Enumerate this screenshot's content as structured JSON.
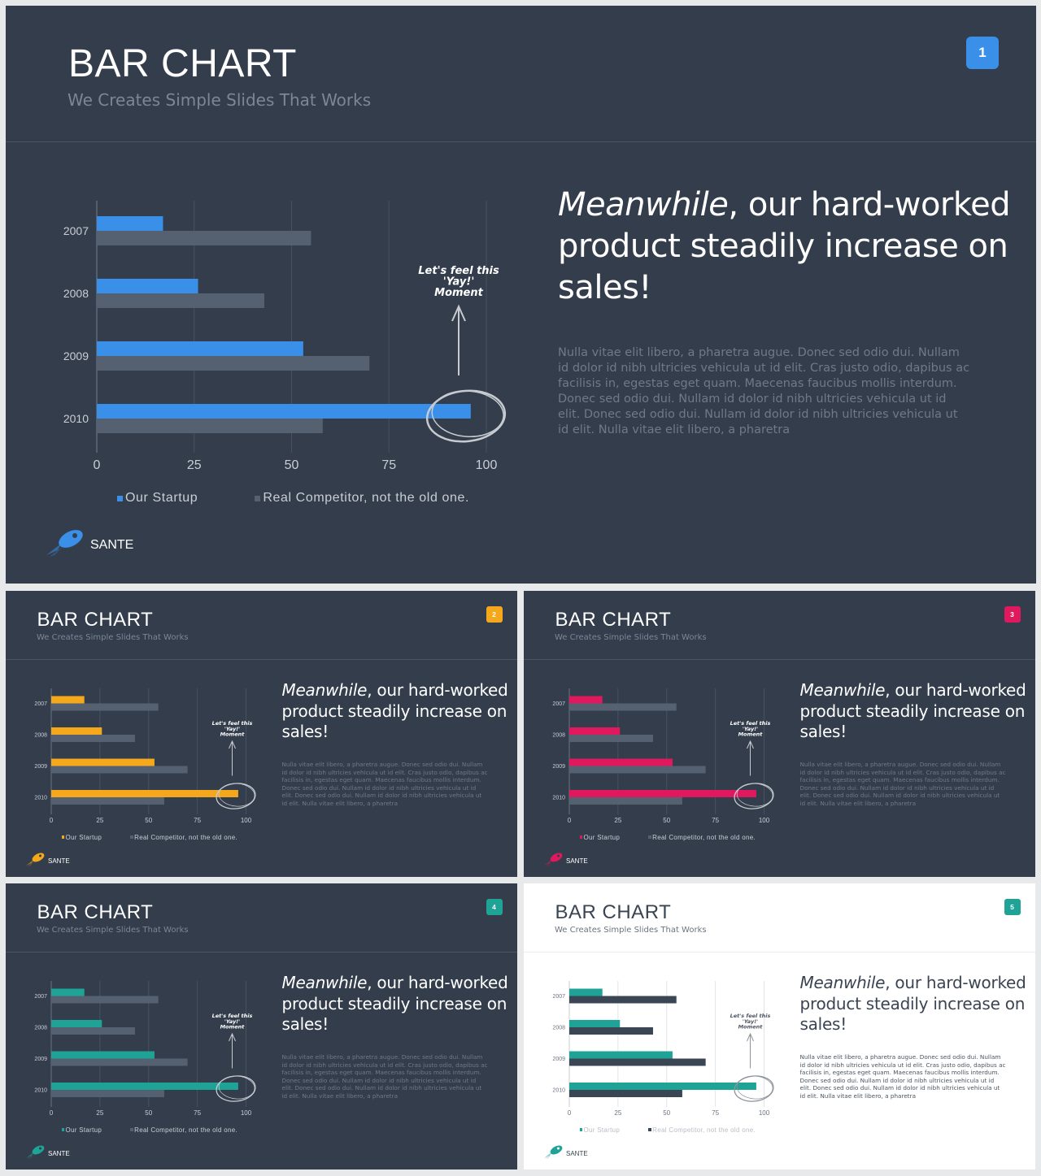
{
  "chart_data": {
    "type": "bar",
    "orientation": "horizontal",
    "categories": [
      "2007",
      "2008",
      "2009",
      "2010"
    ],
    "series": [
      {
        "name": "Our Startup",
        "values": [
          17,
          26,
          53,
          96
        ]
      },
      {
        "name": "Real Competitor, not the old one.",
        "values": [
          55,
          43,
          70,
          58
        ]
      }
    ],
    "xlim": [
      0,
      100
    ],
    "xticks": [
      "0",
      "25",
      "50",
      "75",
      "100"
    ],
    "grid": true,
    "legend": "bottom",
    "annotation": {
      "lines": [
        "Let's feel this",
        "'Yay!'",
        "Moment"
      ],
      "target_category": "2010"
    }
  },
  "deck": {
    "title": "BAR CHART",
    "subtitle": "We Creates Simple Slides That Works",
    "headline_em": "Meanwhile",
    "headline_rest": ", our hard-worked",
    "headline_line2": "product steadily increase on",
    "headline_line3": "sales!",
    "body_lines": [
      "Nulla vitae elit libero, a pharetra augue. Donec sed odio dui. Nullam",
      "id dolor id nibh ultricies vehicula ut id elit. Cras justo odio, dapibus ac",
      "facilisis in, egestas eget quam. Maecenas faucibus mollis interdum.",
      "Donec sed odio dui. Nullam id dolor id nibh ultricies vehicula ut id",
      "elit. Donec sed odio dui. Nullam id dolor id nibh ultricies vehicula ut",
      "id elit. Nulla vitae elit libero, a pharetra"
    ],
    "brand": "SANTE"
  },
  "slides": [
    {
      "number": "1",
      "accent": "#3a8fe8",
      "theme": "dark"
    },
    {
      "number": "2",
      "accent": "#f5a81c",
      "theme": "dark"
    },
    {
      "number": "3",
      "accent": "#e0195f",
      "theme": "dark"
    },
    {
      "number": "4",
      "accent": "#1fa396",
      "theme": "dark"
    },
    {
      "number": "5",
      "accent": "#1fa396",
      "theme": "light"
    }
  ],
  "colors": {
    "dark_bg": "#333d4b",
    "light_bg": "#ffffff",
    "competitor_dark": "#556170",
    "competitor_light": "#3b4654"
  }
}
